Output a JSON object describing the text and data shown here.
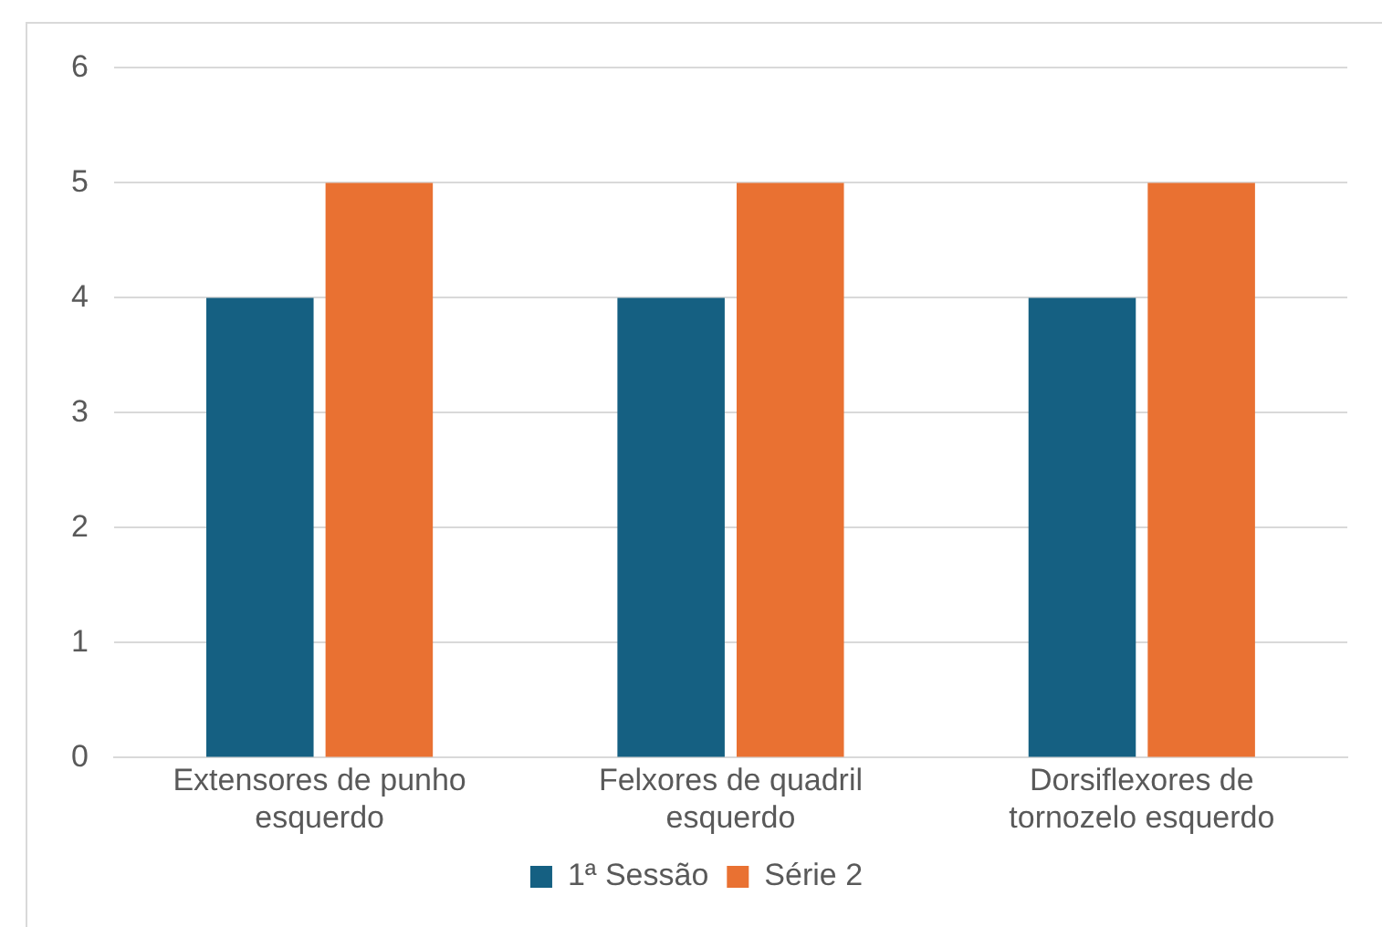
{
  "chart_data": {
    "type": "bar",
    "categories": [
      [
        "Extensores de punho",
        "esquerdo"
      ],
      [
        "Felxores de quadril",
        "esquerdo"
      ],
      [
        "Dorsiflexores de",
        "tornozelo esquerdo"
      ]
    ],
    "series": [
      {
        "name": "1ª Sessão",
        "color": "#156082",
        "values": [
          4,
          4,
          4
        ]
      },
      {
        "name": "Série 2",
        "color": "#e97132",
        "values": [
          5,
          5,
          5
        ]
      }
    ],
    "ylim": [
      0,
      6
    ],
    "yticks": [
      0,
      1,
      2,
      3,
      4,
      5,
      6
    ],
    "grid": "y",
    "legend": "bottom"
  }
}
